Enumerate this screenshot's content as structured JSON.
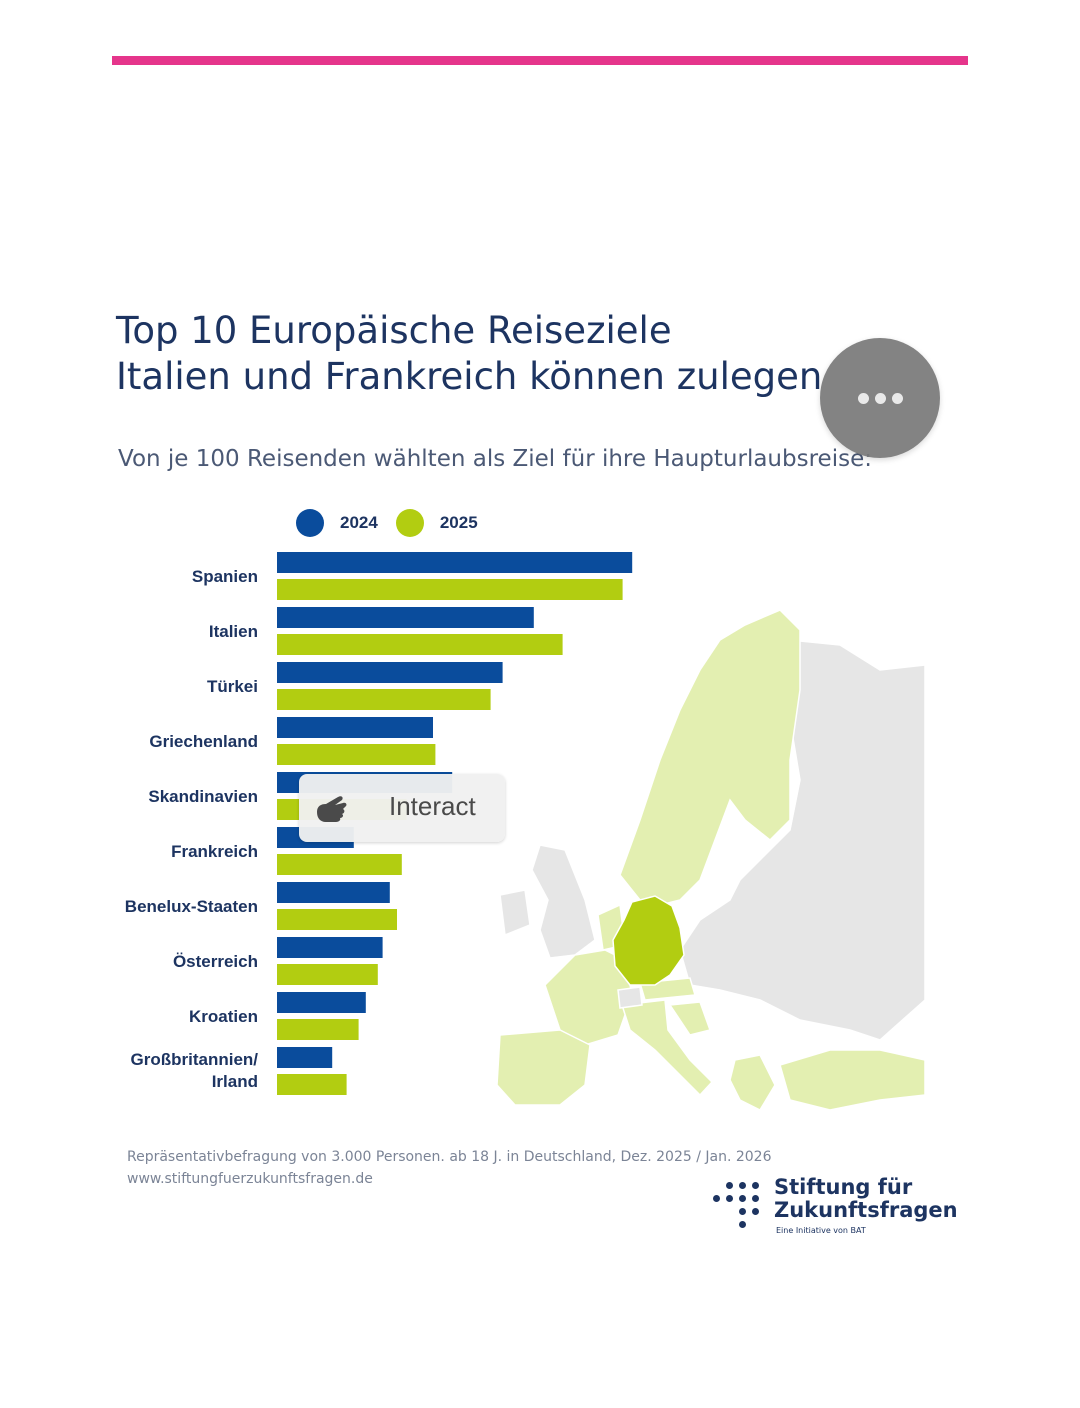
{
  "header": {
    "title_line1": "Top 10 Europäische Reiseziele",
    "title_line2": "Italien und Frankreich können zulegen",
    "subtitle": "Von je 100 Reisenden wählten als Ziel für ihre Haupturlaubsreise:"
  },
  "colors": {
    "accent_bar": "#e5358b",
    "series_2024": "#0a4c9c",
    "series_2025": "#b2cd11",
    "map_highlight": "#e3efb1",
    "map_germany": "#b2cd11",
    "map_other": "#e6e6e6",
    "text_dark": "#1d3461"
  },
  "legend": {
    "series_2024": "2024",
    "series_2025": "2025"
  },
  "chart_data": {
    "type": "bar",
    "orientation": "horizontal",
    "categories": [
      "Spanien",
      "Italien",
      "Türkei",
      "Griechenland",
      "Skandinavien",
      "Frankreich",
      "Benelux-Staaten",
      "Österreich",
      "Kroatien",
      "Großbritannien/ Irland"
    ],
    "series": [
      {
        "name": "2024",
        "values": [
          14.8,
          10.7,
          9.4,
          6.5,
          7.3,
          3.2,
          4.7,
          4.4,
          3.7,
          2.3
        ]
      },
      {
        "name": "2025",
        "values": [
          14.4,
          11.9,
          8.9,
          6.6,
          5.4,
          5.2,
          5.0,
          4.2,
          3.4,
          2.9
        ]
      }
    ],
    "title": "",
    "xlabel": "",
    "ylabel": "",
    "xlim": [
      0,
      16
    ],
    "grid": false,
    "legend_position": "top"
  },
  "overlays": {
    "more_button_icon": "more-horizontal-icon",
    "interact_label": "Interact",
    "interact_icon": "pointing-hand-icon"
  },
  "footer": {
    "source": "Repräsentativbefragung von 3.000 Personen. ab 18 J. in Deutschland, Dez. 2025 / Jan. 2026",
    "url": "www.stiftungfuerzukunftsfragen.de"
  },
  "logo": {
    "name_line1": "Stiftung für",
    "name_line2": "Zukunftsfragen",
    "tagline": "Eine Initiative von BAT"
  }
}
